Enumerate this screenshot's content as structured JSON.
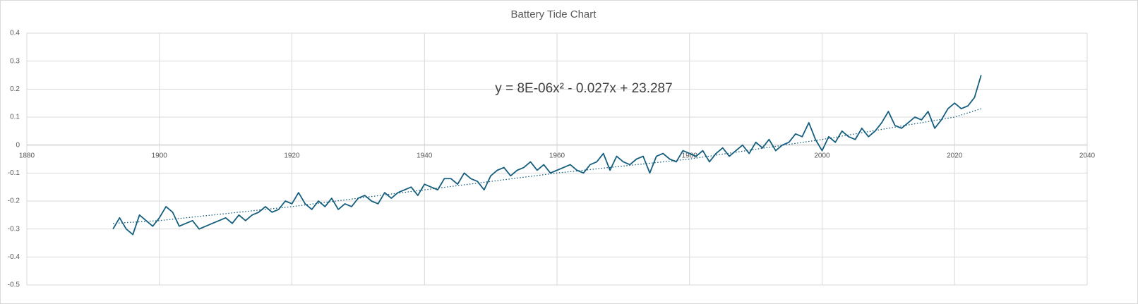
{
  "chart_data": {
    "type": "line",
    "title": "Battery Tide Chart",
    "annotation": "y = 8E-06x² - 0.027x + 23.287",
    "xlim": [
      1880,
      2040
    ],
    "xticks": [
      1880,
      1900,
      1920,
      1940,
      1960,
      1980,
      2000,
      2020,
      2040
    ],
    "ylim": [
      -0.5,
      0.4
    ],
    "yticks": [
      0.4,
      0.3,
      0.2,
      0.1,
      0,
      -0.1,
      -0.2,
      -0.3,
      -0.4,
      -0.5
    ],
    "grid": true,
    "series": [
      {
        "color": "#155e7e",
        "style": "solid",
        "x": [
          1893,
          1894,
          1895,
          1896,
          1897,
          1898,
          1899,
          1900,
          1901,
          1902,
          1903,
          1904,
          1905,
          1906,
          1907,
          1908,
          1909,
          1910,
          1911,
          1912,
          1913,
          1914,
          1915,
          1916,
          1917,
          1918,
          1919,
          1920,
          1921,
          1922,
          1923,
          1924,
          1925,
          1926,
          1927,
          1928,
          1929,
          1930,
          1931,
          1932,
          1933,
          1934,
          1935,
          1936,
          1937,
          1938,
          1939,
          1940,
          1941,
          1942,
          1943,
          1944,
          1945,
          1946,
          1947,
          1948,
          1949,
          1950,
          1951,
          1952,
          1953,
          1954,
          1955,
          1956,
          1957,
          1958,
          1959,
          1960,
          1961,
          1962,
          1963,
          1964,
          1965,
          1966,
          1967,
          1968,
          1969,
          1970,
          1971,
          1972,
          1973,
          1974,
          1975,
          1976,
          1977,
          1978,
          1979,
          1980,
          1981,
          1982,
          1983,
          1984,
          1985,
          1986,
          1987,
          1988,
          1989,
          1990,
          1991,
          1992,
          1993,
          1994,
          1995,
          1996,
          1997,
          1998,
          1999,
          2000,
          2001,
          2002,
          2003,
          2004,
          2005,
          2006,
          2007,
          2008,
          2009,
          2010,
          2011,
          2012,
          2013,
          2014,
          2015,
          2016,
          2017,
          2018,
          2019,
          2020,
          2021,
          2022,
          2023,
          2024
        ],
        "values": [
          -0.3,
          -0.26,
          -0.3,
          -0.32,
          -0.25,
          -0.27,
          -0.29,
          -0.26,
          -0.22,
          -0.24,
          -0.29,
          -0.28,
          -0.27,
          -0.3,
          -0.29,
          -0.28,
          -0.27,
          -0.26,
          -0.28,
          -0.25,
          -0.27,
          -0.25,
          -0.24,
          -0.22,
          -0.24,
          -0.23,
          -0.2,
          -0.21,
          -0.17,
          -0.21,
          -0.23,
          -0.2,
          -0.22,
          -0.19,
          -0.23,
          -0.21,
          -0.22,
          -0.19,
          -0.18,
          -0.2,
          -0.21,
          -0.17,
          -0.19,
          -0.17,
          -0.16,
          -0.15,
          -0.18,
          -0.14,
          -0.15,
          -0.16,
          -0.12,
          -0.12,
          -0.14,
          -0.1,
          -0.12,
          -0.13,
          -0.16,
          -0.11,
          -0.09,
          -0.08,
          -0.11,
          -0.09,
          -0.08,
          -0.06,
          -0.09,
          -0.07,
          -0.1,
          -0.09,
          -0.08,
          -0.07,
          -0.09,
          -0.1,
          -0.07,
          -0.06,
          -0.03,
          -0.09,
          -0.04,
          -0.06,
          -0.07,
          -0.05,
          -0.04,
          -0.1,
          -0.04,
          -0.03,
          -0.05,
          -0.06,
          -0.02,
          -0.03,
          -0.04,
          -0.02,
          -0.06,
          -0.03,
          -0.01,
          -0.04,
          -0.02,
          0.0,
          -0.03,
          0.01,
          -0.01,
          0.02,
          -0.02,
          0.0,
          0.01,
          0.04,
          0.03,
          0.08,
          0.02,
          -0.02,
          0.03,
          0.01,
          0.05,
          0.03,
          0.02,
          0.06,
          0.03,
          0.05,
          0.08,
          0.12,
          0.07,
          0.06,
          0.08,
          0.1,
          0.09,
          0.12,
          0.06,
          0.09,
          0.13,
          0.15,
          0.13,
          0.14,
          0.17,
          0.25
        ]
      },
      {
        "color": "#155e7e",
        "style": "dotted",
        "x": [
          1893,
          1900,
          1920,
          1940,
          1960,
          1980,
          2000,
          2020,
          2024
        ],
        "values": [
          -0.28,
          -0.27,
          -0.22,
          -0.16,
          -0.1,
          -0.05,
          0.02,
          0.1,
          0.13
        ]
      }
    ]
  }
}
